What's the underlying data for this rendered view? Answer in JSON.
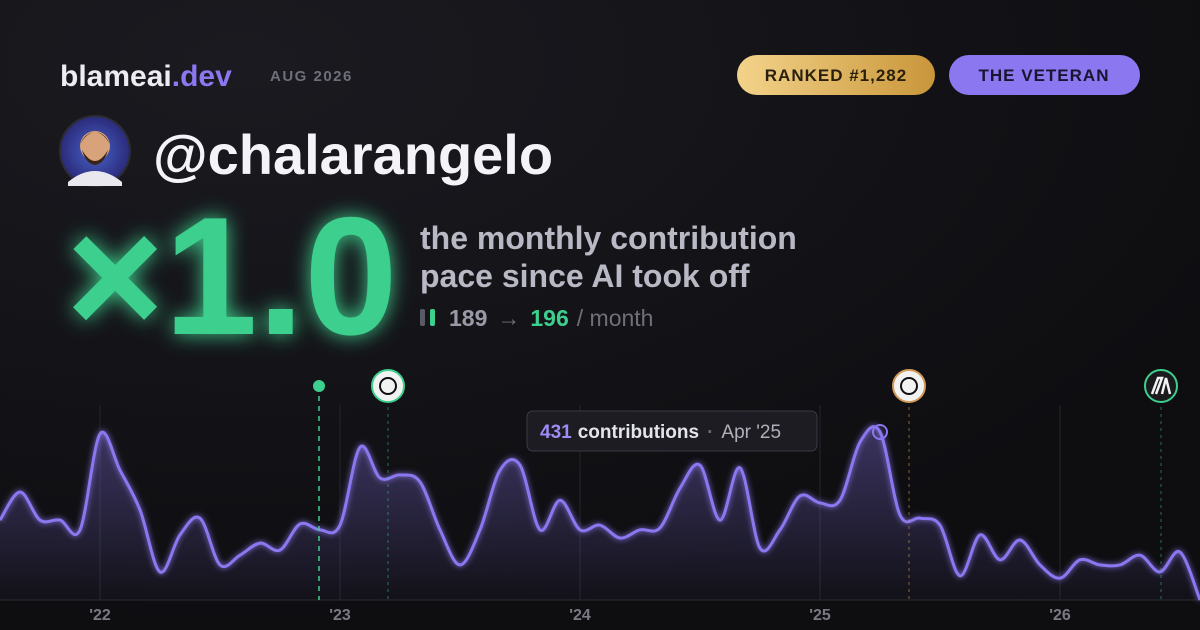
{
  "header": {
    "brand": "blameai",
    "brand_suffix": ".dev",
    "date": "AUG 2026",
    "rank_badge": "RANKED #1,282",
    "title_badge": "THE VETERAN"
  },
  "profile": {
    "handle": "@chalarangelo"
  },
  "stat": {
    "multiplier": "×1.0",
    "line1": "the monthly contribution",
    "line2": "pace since AI took off",
    "before": 189,
    "arrow": "→",
    "after": 196,
    "unit": "/ month"
  },
  "chart_data": {
    "type": "area",
    "categories": [
      null,
      null,
      null,
      null,
      null,
      "'22",
      null,
      null,
      null,
      null,
      null,
      null,
      null,
      null,
      null,
      null,
      null,
      "'23",
      null,
      null,
      null,
      null,
      null,
      null,
      null,
      null,
      null,
      null,
      null,
      "'24",
      null,
      null,
      null,
      null,
      null,
      null,
      null,
      null,
      null,
      null,
      null,
      "'25",
      null,
      null,
      null,
      null,
      null,
      null,
      null,
      null,
      null,
      null,
      null,
      "'26",
      null,
      null,
      null,
      null,
      null,
      null,
      null
    ],
    "series": [
      {
        "color": "#8b78f0",
        "values": [
          205,
          277,
          205,
          205,
          180,
          426,
          333,
          231,
          72,
          167,
          210,
          90,
          115,
          146,
          128,
          195,
          180,
          192,
          392,
          313,
          321,
          303,
          180,
          90,
          180,
          333,
          346,
          180,
          256,
          180,
          192,
          159,
          180,
          185,
          287,
          346,
          205,
          339,
          133,
          180,
          267,
          249,
          256,
          405,
          431,
          218,
          210,
          192,
          62,
          167,
          103,
          154,
          90,
          56,
          103,
          90,
          90,
          115,
          72,
          123,
          0
        ]
      }
    ],
    "tooltip": {
      "label": "contributions",
      "date": "Apr '25"
    }
  }
}
